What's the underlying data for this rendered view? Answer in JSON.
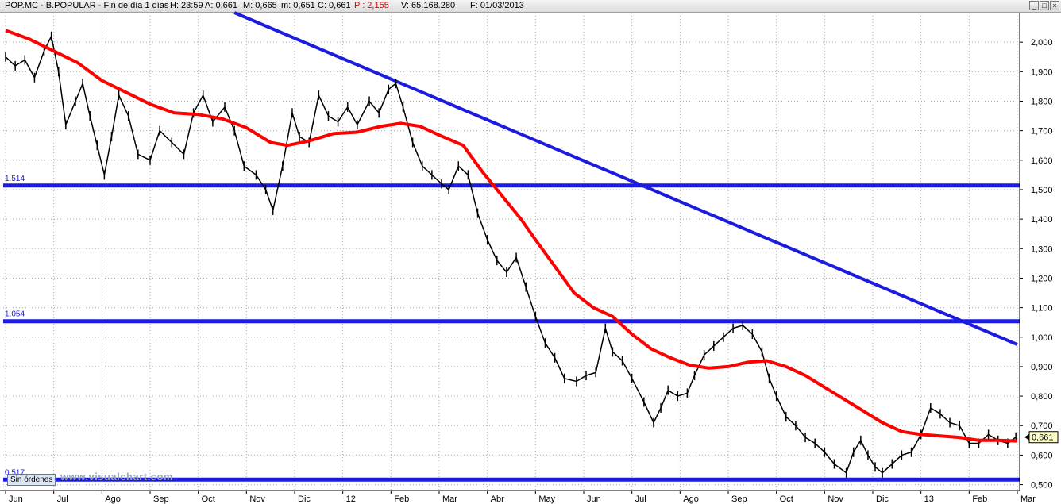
{
  "window": {
    "title_parts": [
      "POP.MC - B.POPULAR - Fin de día 1 días",
      "H: 23:59",
      "A: 0,661",
      "M: 0,665",
      "m: 0,651",
      "C: 0,661",
      "P : 2,155",
      "V: 65.168.280",
      "F: 01/03/2013"
    ],
    "minimize_label": "_",
    "maximize_label": "□",
    "close_label": "×"
  },
  "status": {
    "orders_label": "Sin órdenes"
  },
  "watermark": "www.visualchart.com",
  "colors": {
    "price": "#000000",
    "moving_average": "#ff0000",
    "support_lines": "#1c1ce0",
    "trend_line": "#1c1ce0",
    "grid": "#a8a8a8",
    "axis_text": "#000000"
  },
  "chart_data": {
    "type": "line",
    "ticker": "POP.MC",
    "ylim": [
      0.48,
      2.1
    ],
    "y_ticks": [
      0.5,
      0.6,
      0.7,
      0.8,
      0.9,
      1.0,
      1.1,
      1.2,
      1.3,
      1.4,
      1.5,
      1.6,
      1.7,
      1.8,
      1.9,
      2.0
    ],
    "y_tick_labels": [
      "0,500",
      "0,600",
      "0,700",
      "0,800",
      "0,900",
      "1,000",
      "1,100",
      "1,200",
      "1,300",
      "1,400",
      "1,500",
      "1,600",
      "1,700",
      "1,800",
      "1,900",
      "2,000"
    ],
    "x_labels": [
      "Jun",
      "Jul",
      "Ago",
      "Sep",
      "Oct",
      "Nov",
      "Dic",
      "12",
      "Feb",
      "Mar",
      "Abr",
      "May",
      "Jun",
      "Jul",
      "Ago",
      "Sep",
      "Oct",
      "Nov",
      "Dic",
      "13",
      "Feb",
      "Mar"
    ],
    "x_range": [
      0,
      21
    ],
    "last_price": 0.661,
    "last_price_label": "0,661",
    "price_series": [
      [
        0.0,
        1.95
      ],
      [
        0.2,
        1.92
      ],
      [
        0.4,
        1.94
      ],
      [
        0.6,
        1.88
      ],
      [
        0.8,
        1.97
      ],
      [
        0.95,
        2.02
      ],
      [
        1.1,
        1.9
      ],
      [
        1.25,
        1.72
      ],
      [
        1.45,
        1.8
      ],
      [
        1.6,
        1.86
      ],
      [
        1.75,
        1.75
      ],
      [
        1.9,
        1.65
      ],
      [
        2.05,
        1.55
      ],
      [
        2.2,
        1.68
      ],
      [
        2.35,
        1.82
      ],
      [
        2.55,
        1.75
      ],
      [
        2.75,
        1.62
      ],
      [
        3.0,
        1.6
      ],
      [
        3.2,
        1.7
      ],
      [
        3.45,
        1.66
      ],
      [
        3.7,
        1.62
      ],
      [
        3.9,
        1.76
      ],
      [
        4.1,
        1.82
      ],
      [
        4.3,
        1.73
      ],
      [
        4.55,
        1.78
      ],
      [
        4.75,
        1.7
      ],
      [
        4.95,
        1.58
      ],
      [
        5.2,
        1.55
      ],
      [
        5.4,
        1.5
      ],
      [
        5.55,
        1.43
      ],
      [
        5.75,
        1.58
      ],
      [
        5.95,
        1.76
      ],
      [
        6.1,
        1.68
      ],
      [
        6.3,
        1.66
      ],
      [
        6.5,
        1.82
      ],
      [
        6.7,
        1.75
      ],
      [
        6.9,
        1.73
      ],
      [
        7.1,
        1.78
      ],
      [
        7.3,
        1.72
      ],
      [
        7.55,
        1.8
      ],
      [
        7.75,
        1.76
      ],
      [
        7.95,
        1.84
      ],
      [
        8.1,
        1.86
      ],
      [
        8.25,
        1.78
      ],
      [
        8.45,
        1.66
      ],
      [
        8.65,
        1.58
      ],
      [
        8.85,
        1.55
      ],
      [
        9.05,
        1.52
      ],
      [
        9.2,
        1.5
      ],
      [
        9.4,
        1.58
      ],
      [
        9.6,
        1.55
      ],
      [
        9.8,
        1.42
      ],
      [
        10.0,
        1.33
      ],
      [
        10.2,
        1.26
      ],
      [
        10.4,
        1.22
      ],
      [
        10.6,
        1.27
      ],
      [
        10.8,
        1.17
      ],
      [
        11.0,
        1.07
      ],
      [
        11.2,
        0.98
      ],
      [
        11.4,
        0.93
      ],
      [
        11.6,
        0.86
      ],
      [
        11.85,
        0.85
      ],
      [
        12.05,
        0.87
      ],
      [
        12.25,
        0.88
      ],
      [
        12.45,
        1.03
      ],
      [
        12.6,
        0.95
      ],
      [
        12.8,
        0.92
      ],
      [
        13.0,
        0.86
      ],
      [
        13.25,
        0.78
      ],
      [
        13.45,
        0.71
      ],
      [
        13.6,
        0.76
      ],
      [
        13.75,
        0.82
      ],
      [
        13.95,
        0.8
      ],
      [
        14.15,
        0.81
      ],
      [
        14.3,
        0.87
      ],
      [
        14.5,
        0.94
      ],
      [
        14.7,
        0.97
      ],
      [
        14.9,
        1.0
      ],
      [
        15.1,
        1.03
      ],
      [
        15.3,
        1.04
      ],
      [
        15.5,
        1.01
      ],
      [
        15.7,
        0.95
      ],
      [
        15.85,
        0.86
      ],
      [
        16.0,
        0.8
      ],
      [
        16.2,
        0.73
      ],
      [
        16.4,
        0.7
      ],
      [
        16.6,
        0.66
      ],
      [
        16.8,
        0.64
      ],
      [
        17.0,
        0.61
      ],
      [
        17.2,
        0.57
      ],
      [
        17.45,
        0.54
      ],
      [
        17.6,
        0.61
      ],
      [
        17.75,
        0.65
      ],
      [
        17.9,
        0.6
      ],
      [
        18.05,
        0.56
      ],
      [
        18.2,
        0.54
      ],
      [
        18.4,
        0.57
      ],
      [
        18.6,
        0.6
      ],
      [
        18.8,
        0.61
      ],
      [
        19.0,
        0.67
      ],
      [
        19.2,
        0.76
      ],
      [
        19.4,
        0.74
      ],
      [
        19.6,
        0.71
      ],
      [
        19.8,
        0.7
      ],
      [
        20.0,
        0.64
      ],
      [
        20.2,
        0.64
      ],
      [
        20.4,
        0.67
      ],
      [
        20.6,
        0.65
      ],
      [
        20.8,
        0.64
      ],
      [
        20.97,
        0.661
      ]
    ],
    "moving_average_series": [
      [
        0.0,
        2.04
      ],
      [
        0.5,
        2.01
      ],
      [
        1.0,
        1.97
      ],
      [
        1.5,
        1.93
      ],
      [
        2.0,
        1.87
      ],
      [
        2.5,
        1.83
      ],
      [
        3.0,
        1.79
      ],
      [
        3.5,
        1.76
      ],
      [
        4.0,
        1.755
      ],
      [
        4.5,
        1.74
      ],
      [
        5.0,
        1.71
      ],
      [
        5.5,
        1.66
      ],
      [
        5.85,
        1.65
      ],
      [
        6.3,
        1.665
      ],
      [
        6.8,
        1.69
      ],
      [
        7.3,
        1.695
      ],
      [
        7.8,
        1.715
      ],
      [
        8.2,
        1.725
      ],
      [
        8.6,
        1.715
      ],
      [
        9.0,
        1.685
      ],
      [
        9.5,
        1.65
      ],
      [
        9.9,
        1.56
      ],
      [
        10.3,
        1.48
      ],
      [
        10.7,
        1.4
      ],
      [
        11.0,
        1.33
      ],
      [
        11.4,
        1.24
      ],
      [
        11.8,
        1.15
      ],
      [
        12.2,
        1.1
      ],
      [
        12.6,
        1.07
      ],
      [
        13.0,
        1.01
      ],
      [
        13.4,
        0.96
      ],
      [
        13.8,
        0.93
      ],
      [
        14.2,
        0.905
      ],
      [
        14.6,
        0.895
      ],
      [
        15.0,
        0.9
      ],
      [
        15.4,
        0.915
      ],
      [
        15.8,
        0.92
      ],
      [
        16.2,
        0.9
      ],
      [
        16.6,
        0.87
      ],
      [
        17.0,
        0.83
      ],
      [
        17.4,
        0.79
      ],
      [
        17.8,
        0.75
      ],
      [
        18.2,
        0.71
      ],
      [
        18.6,
        0.68
      ],
      [
        19.0,
        0.67
      ],
      [
        19.4,
        0.665
      ],
      [
        19.8,
        0.66
      ],
      [
        20.2,
        0.65
      ],
      [
        20.6,
        0.65
      ],
      [
        21.0,
        0.648
      ]
    ],
    "horizontal_lines": [
      {
        "value": 1.514,
        "label": "1.514"
      },
      {
        "value": 1.054,
        "label": "1.054"
      },
      {
        "value": 0.517,
        "label": "0.517"
      }
    ],
    "trend_line": {
      "x1": 4.75,
      "y1": 2.1,
      "x2": 21.0,
      "y2": 0.975
    },
    "grid": true
  }
}
